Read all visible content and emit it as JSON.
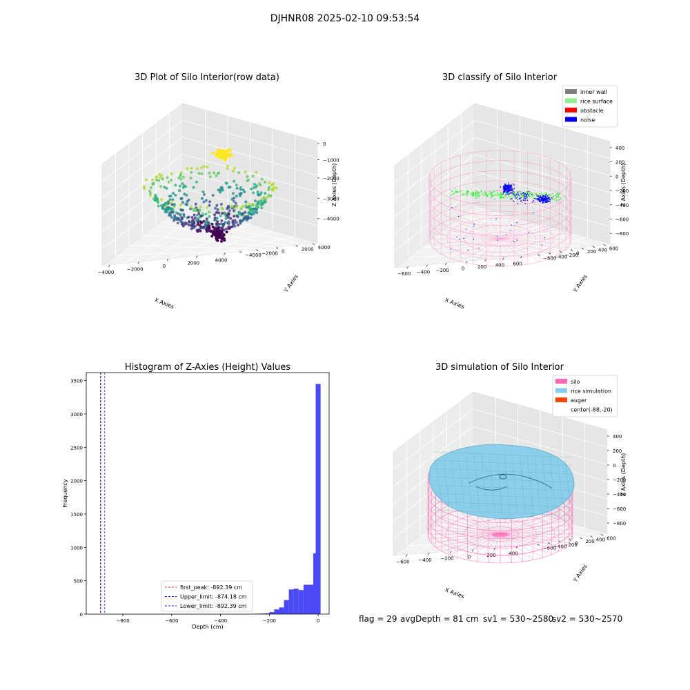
{
  "suptitle": "DJHNR08 2025-02-10 09:53:54",
  "footer": {
    "flag": "flag = 29",
    "avg_depth": "avgDepth = 81 cm",
    "sv1": "sv1 = 530~2580",
    "sv2": "sv2 = 530~2570"
  },
  "chart_data": [
    {
      "type": "scatter",
      "projection": "3d",
      "title": "3D Plot of Silo Interior(row data)",
      "xlabel": "X Axies",
      "ylabel": "Y Axies",
      "zlabel": "Z Axies (Depth)",
      "x_ticks": [
        "−4000",
        "−2000",
        "0",
        "2000",
        "4000"
      ],
      "y_ticks": [
        "−4000",
        "−2000",
        "0",
        "2000",
        "4000"
      ],
      "z_ticks": [
        "−4000",
        "−3000",
        "−2000",
        "−1000",
        "0"
      ],
      "xlim": [
        -4500,
        4500
      ],
      "ylim": [
        -4500,
        4500
      ],
      "zlim": [
        -4500,
        200
      ],
      "colormap": "viridis",
      "grid": true,
      "description_series": "Hemispherical point cloud; colour encodes depth (dark purple deep, yellow shallow)"
    },
    {
      "type": "scatter",
      "projection": "3d",
      "title": "3D classify of Silo Interior",
      "xlabel": "X Axies",
      "ylabel": "Y Axies",
      "zlabel": "Z Axies (Depth)",
      "x_ticks": [
        "−600",
        "−400",
        "−200",
        "0",
        "200",
        "400",
        "600"
      ],
      "y_ticks": [
        "−600",
        "−400",
        "−200",
        "0",
        "200",
        "400",
        "600"
      ],
      "z_ticks": [
        "−800",
        "−600",
        "−400",
        "−200",
        "0",
        "200",
        "400"
      ],
      "xlim": [
        -700,
        650
      ],
      "ylim": [
        -700,
        650
      ],
      "zlim": [
        -950,
        450
      ],
      "legend_position": "top-right",
      "legend": [
        {
          "label": "inner wall",
          "color": "#808080"
        },
        {
          "label": "rice surface",
          "color": "#90ee90"
        },
        {
          "label": "obstacle",
          "color": "#ff0000"
        },
        {
          "label": "noise",
          "color": "#0000ee"
        }
      ],
      "colors": {
        "wireframe": "#ff69b4",
        "rice": "#00ff00",
        "noise": "#0000ff"
      },
      "grid": true
    },
    {
      "type": "bar",
      "subtype": "histogram",
      "title": "Histogram of Z-Axies (Height) Values",
      "xlabel": "Depth (cm)",
      "ylabel": "Frequency",
      "xlim": [
        -950,
        45
      ],
      "ylim": [
        0,
        3620
      ],
      "x_ticks": [
        -800,
        -600,
        -400,
        -200,
        0
      ],
      "y_ticks": [
        0,
        500,
        1000,
        1500,
        2000,
        2500,
        3000,
        3500
      ],
      "bin_width": 20,
      "bins": [
        {
          "x0": -280,
          "count": 4
        },
        {
          "x0": -260,
          "count": 6
        },
        {
          "x0": -240,
          "count": 8
        },
        {
          "x0": -220,
          "count": 12
        },
        {
          "x0": -200,
          "count": 30
        },
        {
          "x0": -180,
          "count": 70
        },
        {
          "x0": -160,
          "count": 100
        },
        {
          "x0": -140,
          "count": 210
        },
        {
          "x0": -120,
          "count": 370
        },
        {
          "x0": -100,
          "count": 380
        },
        {
          "x0": -80,
          "count": 360
        },
        {
          "x0": -60,
          "count": 440
        },
        {
          "x0": -40,
          "count": 440
        },
        {
          "x0": -20,
          "count": 910
        },
        {
          "x0": -10,
          "count": 3450
        }
      ],
      "bar_color": "#4a4af5",
      "vlines": [
        {
          "label": "first_peak: -892.39 cm",
          "x": -892.39,
          "color": "#d62728"
        },
        {
          "label": "Upper_limit: -874.18 cm",
          "x": -874.18,
          "color": "#1f1fbf"
        },
        {
          "label": "Lower_limit: -892.39 cm",
          "x": -892.39,
          "color": "#1f1fbf"
        }
      ],
      "legend_position": "lower-center",
      "grid": false
    },
    {
      "type": "surface",
      "projection": "3d",
      "title": "3D simulation of Silo Interior",
      "xlabel": "X Axies",
      "ylabel": "Y Axies",
      "zlabel": "Z Axies (Depth)",
      "x_ticks": [
        "−600",
        "−400",
        "−200",
        "0",
        "200",
        "400"
      ],
      "y_ticks": [
        "−600",
        "−400",
        "−200",
        "0",
        "200",
        "400",
        "600"
      ],
      "z_ticks": [
        "−800",
        "−600",
        "−400",
        "−200",
        "0",
        "200",
        "400"
      ],
      "xlim": [
        -700,
        500
      ],
      "ylim": [
        -700,
        650
      ],
      "zlim": [
        -950,
        450
      ],
      "legend_position": "top-right",
      "legend": [
        {
          "label": "silo",
          "color": "#ff69b4"
        },
        {
          "label": "rice simulation",
          "color": "#87ceeb"
        },
        {
          "label": "auger",
          "color": "#ff4500"
        },
        {
          "label": "center(-88,-20)",
          "color": "none"
        }
      ],
      "grid": true
    }
  ]
}
